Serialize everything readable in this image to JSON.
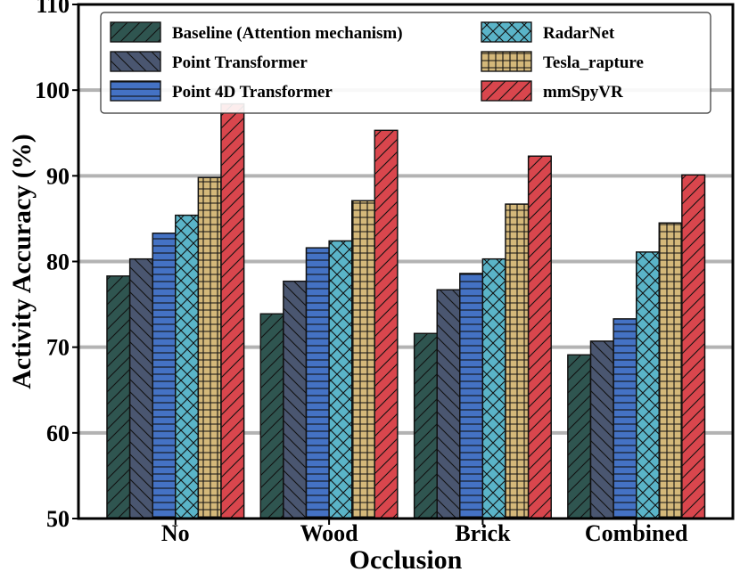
{
  "chart_data": {
    "type": "bar",
    "title": "",
    "xlabel": "Occlusion",
    "ylabel": "Activity Accuracy (%)",
    "categories": [
      "No",
      "Wood",
      "Brick",
      "Combined"
    ],
    "ylim": [
      50,
      110
    ],
    "yticks": [
      "50",
      "60",
      "70",
      "80",
      "90",
      "100",
      "110"
    ],
    "grid": "horizontal",
    "legend_position": "top",
    "series": [
      {
        "name": "Baseline (Attention mechanism)",
        "color": "#2f5550",
        "pattern": "diag-fwd",
        "values": [
          78.3,
          73.9,
          71.6,
          69.1
        ]
      },
      {
        "name": "Point Transformer",
        "color": "#4a5670",
        "pattern": "diag-back",
        "values": [
          80.3,
          77.7,
          76.7,
          70.7
        ]
      },
      {
        "name": "Point 4D Transformer",
        "color": "#4472c4",
        "pattern": "horizontal",
        "values": [
          83.3,
          81.6,
          78.6,
          73.3
        ]
      },
      {
        "name": "RadarNet",
        "color": "#5ab4c8",
        "pattern": "cross",
        "values": [
          85.4,
          82.4,
          80.3,
          81.1
        ]
      },
      {
        "name": "Tesla_rapture",
        "color": "#d4b87a",
        "pattern": "grid",
        "values": [
          89.8,
          87.1,
          86.7,
          84.5
        ]
      },
      {
        "name": "mmSpyVR",
        "color": "#d9464d",
        "pattern": "diag-fwd",
        "values": [
          98.4,
          95.3,
          92.3,
          90.1
        ]
      }
    ]
  }
}
